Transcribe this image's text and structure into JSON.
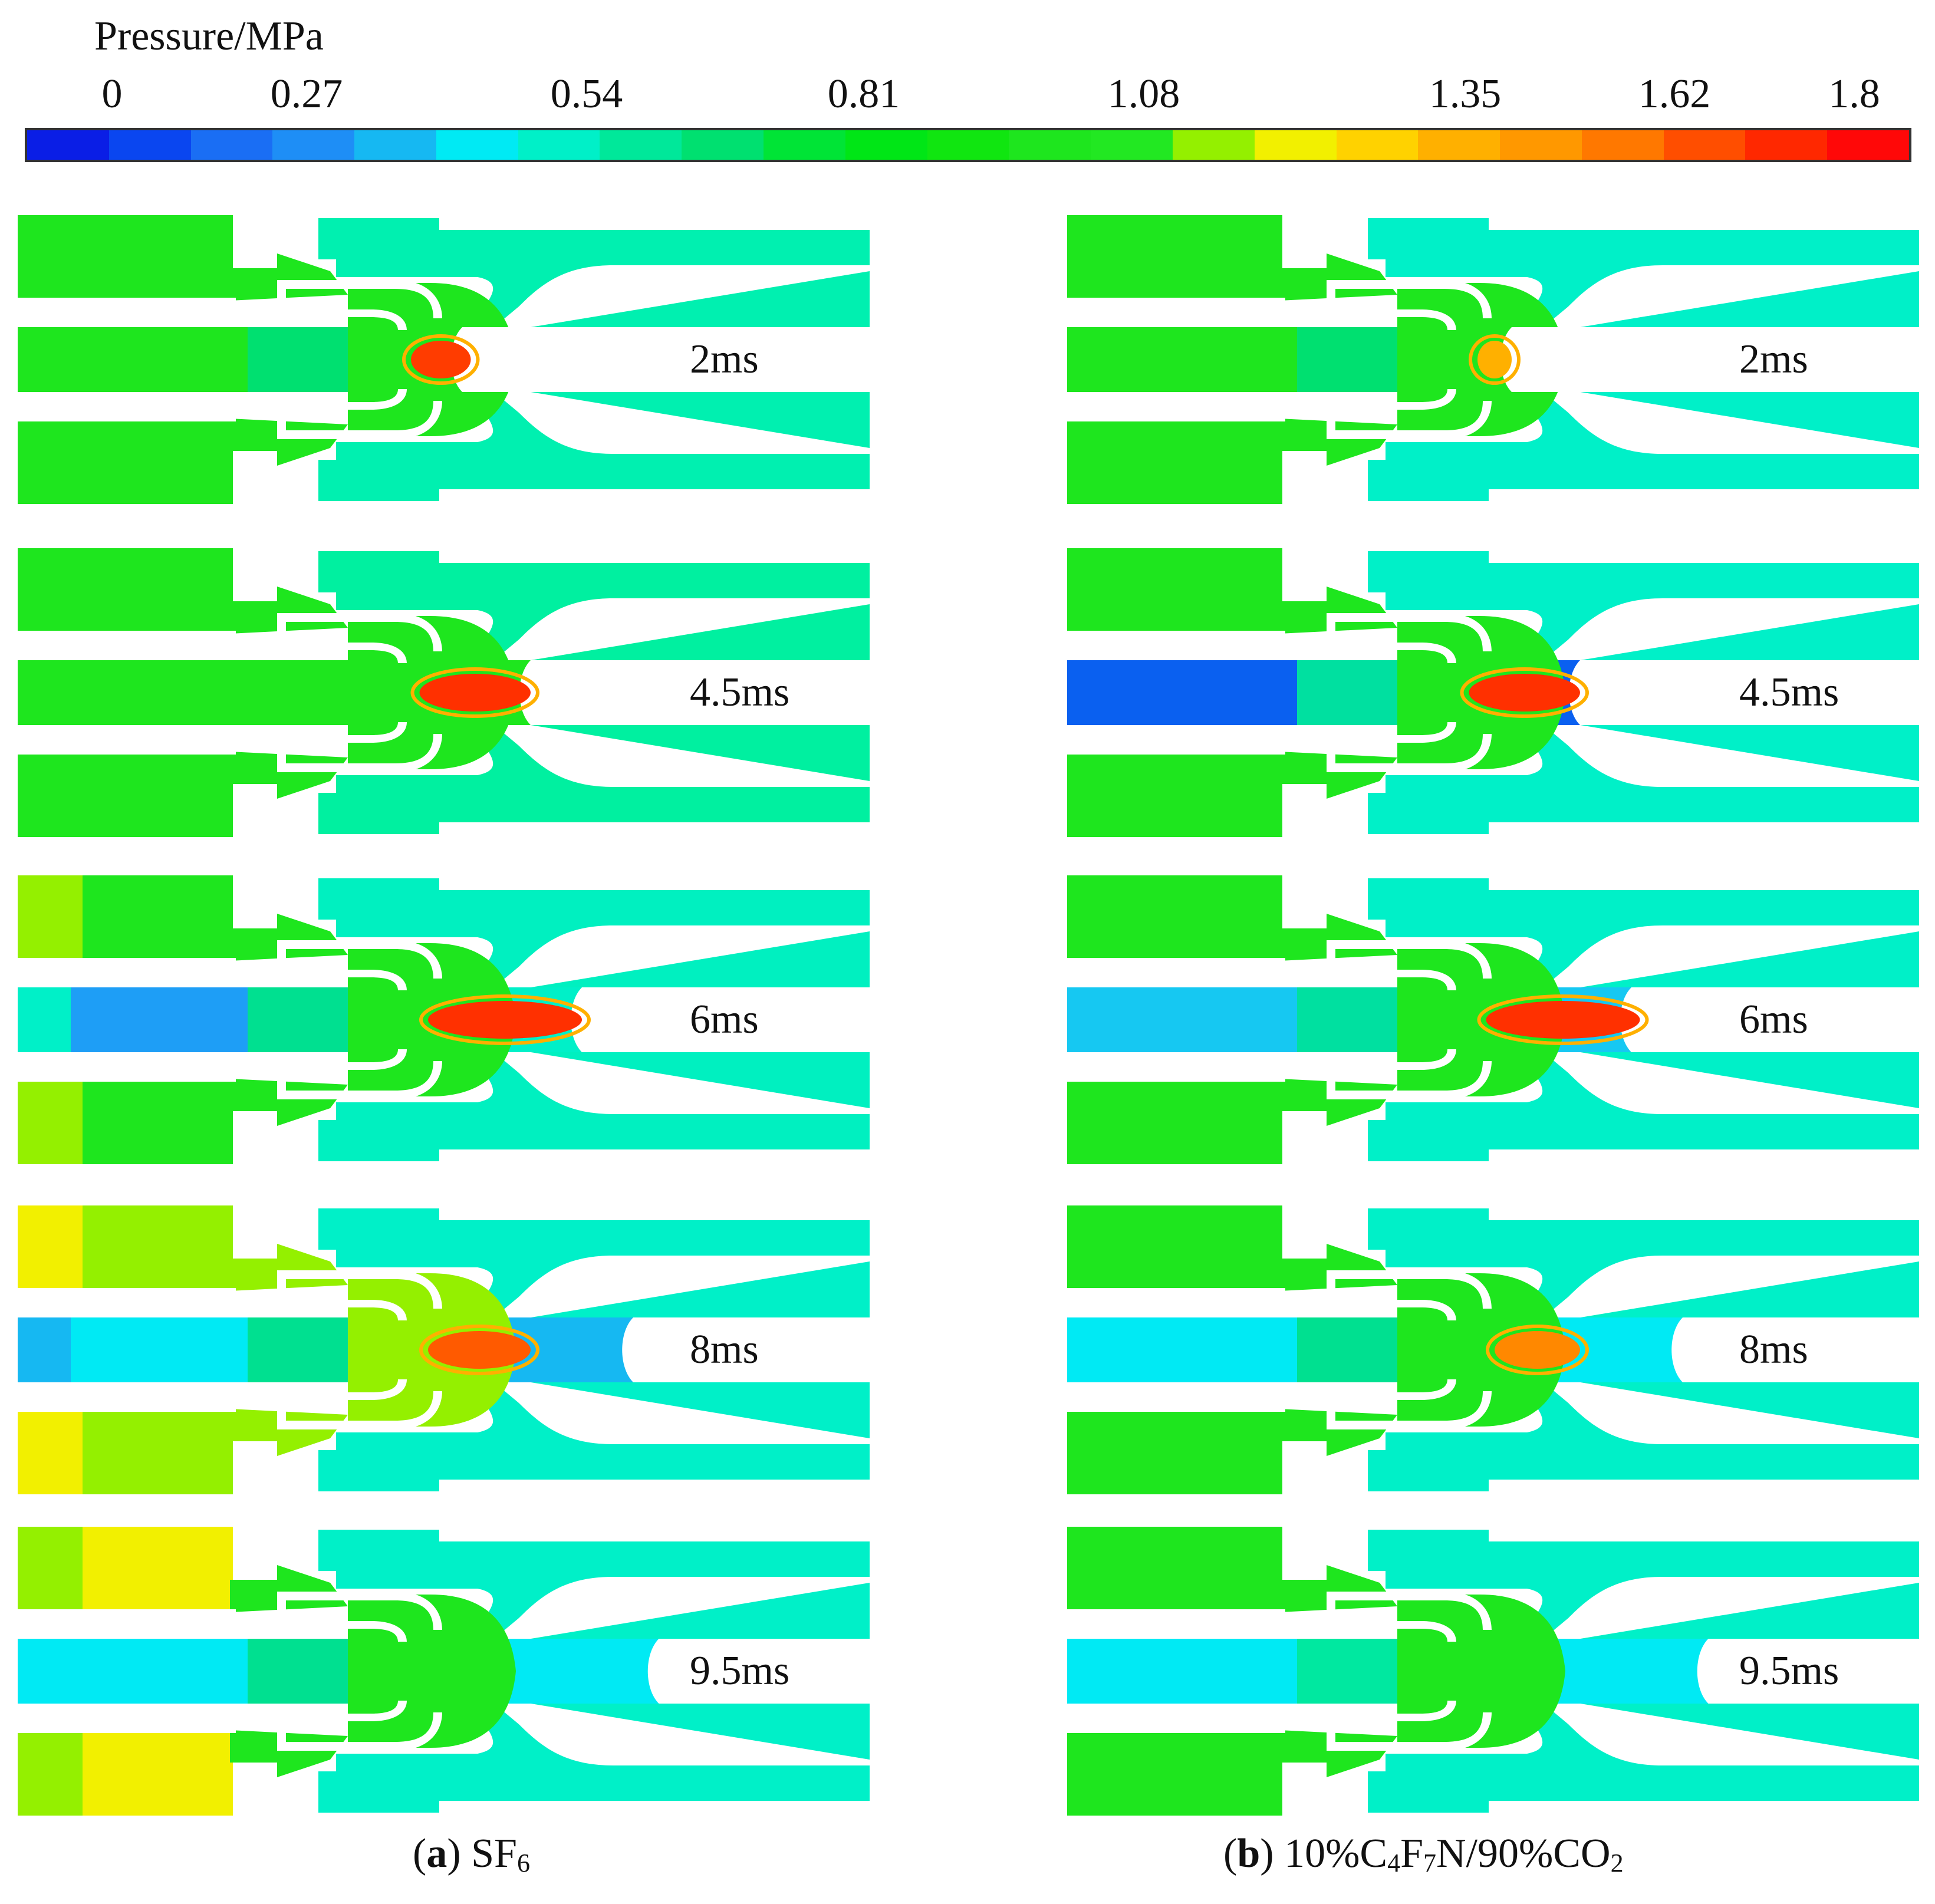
{
  "legend": {
    "title": "Pressure/MPa",
    "ticks": [
      "0",
      "0.27",
      "0.54",
      "0.81",
      "1.08",
      "1.35",
      "1.62",
      "1.8"
    ],
    "colors": [
      "#0a1ee6",
      "#0a46f0",
      "#1a6ef4",
      "#1e8ef6",
      "#16b8f2",
      "#00eaf4",
      "#00f0c8",
      "#00e89a",
      "#00e070",
      "#00e436",
      "#00e616",
      "#10e610",
      "#1ee61e",
      "#22e822",
      "#94f000",
      "#f2f000",
      "#ffd200",
      "#ffb000",
      "#ff9800",
      "#ff7800",
      "#ff4e00",
      "#ff2800",
      "#ff0808"
    ]
  },
  "panels": [
    {
      "caption_letter": "a",
      "caption_text": "SF",
      "caption_sub1": "6",
      "frames": [
        {
          "time": "2ms",
          "outer": "#1ee61e",
          "bore": "#1ee61e",
          "bore_tail": "#1ee61e",
          "bore_mid": "#00e070",
          "arc": "#ff3c00",
          "arc_len": 0.07,
          "arc_pos": 0.46,
          "downstream": "#00f0b0",
          "nozzle": "#1ee61e",
          "outer_tail": "#1ee61e",
          "bore_end": 0.52
        },
        {
          "time": "4.5ms",
          "outer": "#1ee61e",
          "bore": "#1ee61e",
          "bore_tail": "#1ee61e",
          "bore_mid": "#1ee61e",
          "arc": "#ff3000",
          "arc_len": 0.13,
          "arc_pos": 0.47,
          "downstream": "#00f0a0",
          "nozzle": "#1ee61e",
          "outer_tail": "#1ee61e",
          "bore_end": 0.6
        },
        {
          "time": "6ms",
          "outer": "#1ee61e",
          "bore": "#00f0c8",
          "bore_tail": "#1e9ef6",
          "bore_mid": "#00e090",
          "arc": "#ff3000",
          "arc_len": 0.18,
          "arc_pos": 0.48,
          "downstream": "#00f0c0",
          "nozzle": "#1ee61e",
          "outer_tail": "#94f000",
          "bore_end": 0.66
        },
        {
          "time": "8ms",
          "outer": "#94f000",
          "bore": "#16b8f2",
          "bore_tail": "#00eaf4",
          "bore_mid": "#00e090",
          "arc": "#ff5a00",
          "arc_len": 0.12,
          "arc_pos": 0.48,
          "downstream": "#00f0c8",
          "nozzle": "#94f000",
          "outer_tail": "#f2f000",
          "bore_end": 0.72
        },
        {
          "time": "9.5ms",
          "outer": "#f2f000",
          "bore": "#00eaf4",
          "bore_tail": "#00eaf4",
          "bore_mid": "#00e090",
          "arc": "#1ee61e",
          "arc_len": 0.0,
          "arc_pos": 0.48,
          "downstream": "#00f0c8",
          "nozzle": "#1ee61e",
          "outer_tail": "#94f000",
          "bore_end": 0.75
        }
      ]
    },
    {
      "caption_letter": "b",
      "caption_text": "10%C",
      "caption_sub1": "4",
      "caption_text2": "F",
      "caption_sub2": "7",
      "caption_text3": "N/90%CO",
      "caption_sub3": "2",
      "frames": [
        {
          "time": "2ms",
          "outer": "#1ee61e",
          "bore": "#1ee61e",
          "bore_tail": "#1ee61e",
          "bore_mid": "#00e070",
          "arc": "#ffb000",
          "arc_len": 0.04,
          "arc_pos": 0.48,
          "downstream": "#00f0c8",
          "nozzle": "#1ee61e",
          "outer_tail": "#1ee61e",
          "bore_end": 0.52
        },
        {
          "time": "4.5ms",
          "outer": "#1ee61e",
          "bore": "#0a60f0",
          "bore_tail": "#0a60f0",
          "bore_mid": "#00e0a0",
          "arc": "#ff3000",
          "arc_len": 0.13,
          "arc_pos": 0.47,
          "downstream": "#00f0c8",
          "nozzle": "#1ee61e",
          "outer_tail": "#1ee61e",
          "bore_end": 0.6
        },
        {
          "time": "6ms",
          "outer": "#1ee61e",
          "bore": "#16c8f2",
          "bore_tail": "#16c8f2",
          "bore_mid": "#00e0a0",
          "arc": "#ff3000",
          "arc_len": 0.18,
          "arc_pos": 0.49,
          "downstream": "#00f0c8",
          "nozzle": "#1ee61e",
          "outer_tail": "#1ee61e",
          "bore_end": 0.66
        },
        {
          "time": "8ms",
          "outer": "#1ee61e",
          "bore": "#00eaf4",
          "bore_tail": "#00eaf4",
          "bore_mid": "#00e090",
          "arc": "#ff8800",
          "arc_len": 0.1,
          "arc_pos": 0.5,
          "downstream": "#00f0c8",
          "nozzle": "#1ee61e",
          "outer_tail": "#1ee61e",
          "bore_end": 0.72
        },
        {
          "time": "9.5ms",
          "outer": "#1ee61e",
          "bore": "#00eaf4",
          "bore_tail": "#00eaf4",
          "bore_mid": "#00e8a0",
          "arc": "#1ee61e",
          "arc_len": 0.0,
          "arc_pos": 0.48,
          "downstream": "#00f0c8",
          "nozzle": "#1ee61e",
          "outer_tail": "#1ee61e",
          "bore_end": 0.75
        }
      ]
    }
  ]
}
